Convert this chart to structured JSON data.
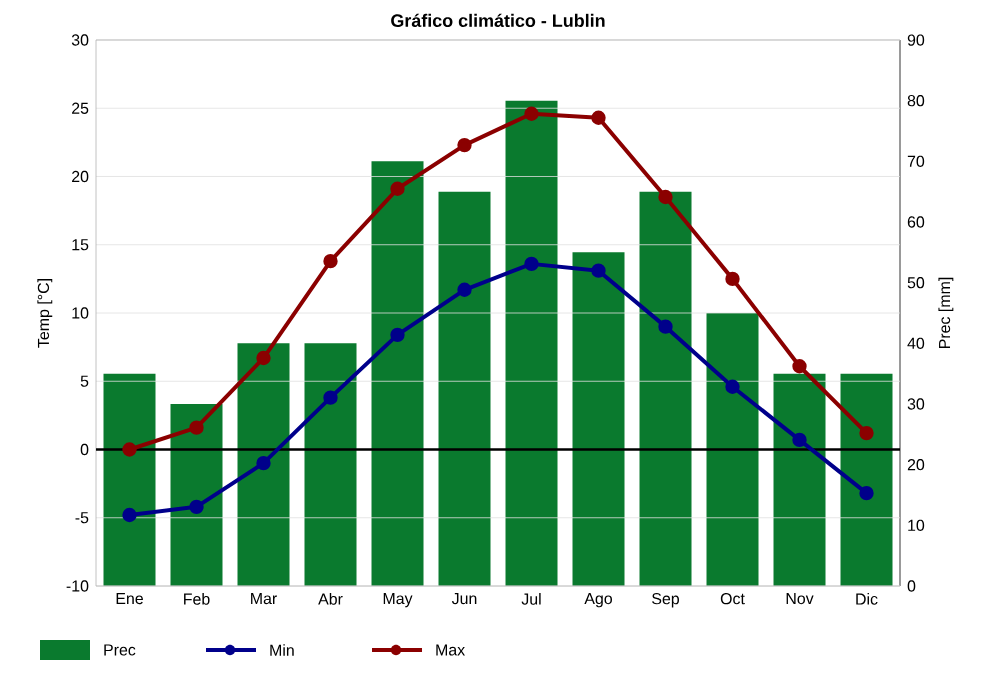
{
  "chart_data": {
    "type": "line",
    "title": "Gráfico climático - Lublin",
    "ylabel": "Temp [°C]",
    "y2label": "Prec [mm]",
    "categories": [
      "Ene",
      "Feb",
      "Mar",
      "Abr",
      "May",
      "Jun",
      "Jul",
      "Ago",
      "Sep",
      "Oct",
      "Nov",
      "Dic"
    ],
    "series": [
      {
        "name": "Prec",
        "type": "bar",
        "axis": "y2",
        "color": "#0a7a2e",
        "values": [
          35,
          30,
          40,
          40,
          70,
          65,
          80,
          55,
          65,
          45,
          35,
          35
        ]
      },
      {
        "name": "Min",
        "color": "#00008b",
        "values": [
          -4.8,
          -4.2,
          -1.0,
          3.8,
          8.4,
          11.7,
          13.6,
          13.1,
          9.0,
          4.6,
          0.7,
          -3.2
        ]
      },
      {
        "name": "Max",
        "color": "#8b0000",
        "values": [
          0.0,
          1.6,
          6.7,
          13.8,
          19.1,
          22.3,
          24.6,
          24.3,
          18.5,
          12.5,
          6.1,
          1.2
        ]
      }
    ],
    "ylim": [
      -10,
      30
    ],
    "yticks": [
      -10,
      -5,
      0,
      5,
      10,
      15,
      20,
      25,
      30
    ],
    "y2lim": [
      0,
      90
    ],
    "y2ticks": [
      0,
      10,
      20,
      30,
      40,
      50,
      60,
      70,
      80,
      90
    ],
    "ref_lines": [
      {
        "axis": "y",
        "value": 0,
        "color": "#000000"
      }
    ],
    "grid": "y",
    "legend": "bottom",
    "marker": "circle",
    "line_style": "solid"
  }
}
